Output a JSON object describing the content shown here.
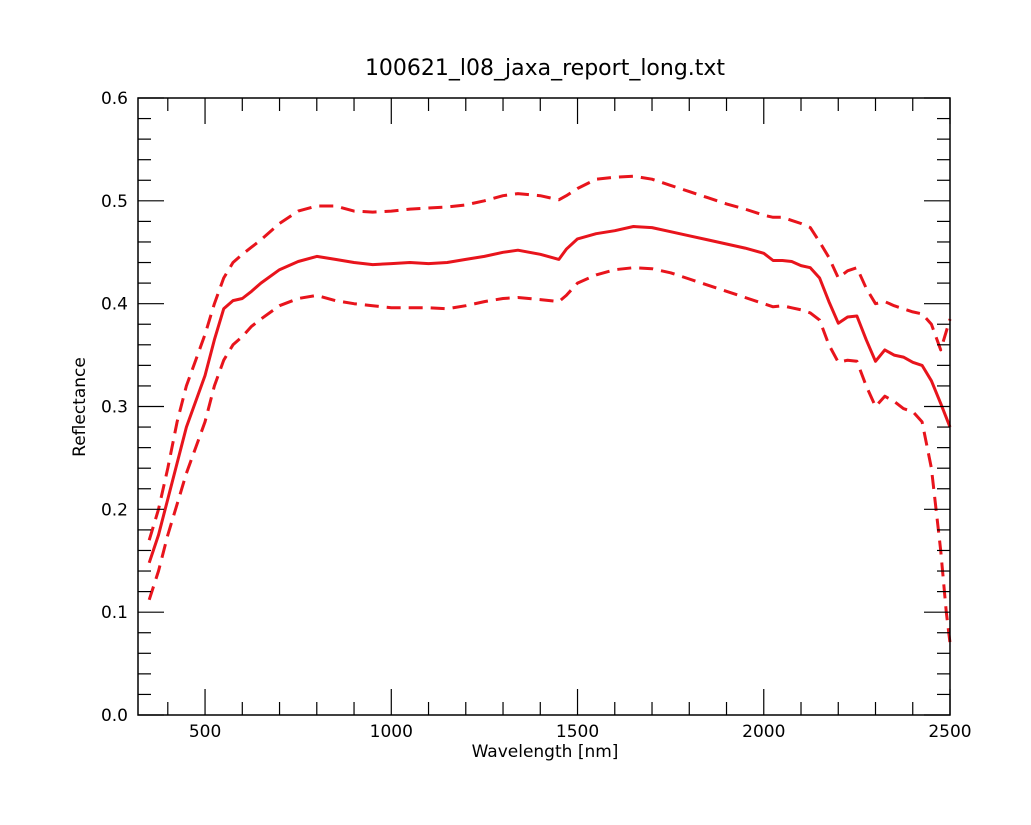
{
  "chart_data": {
    "type": "line",
    "title": "100621_l08_jaxa_report_long.txt",
    "xlabel": "Wavelength [nm]",
    "ylabel": "Reflectance",
    "xlim": [
      320,
      2500
    ],
    "ylim": [
      0.0,
      0.6
    ],
    "x_ticks": [
      "500",
      "1000",
      "1500",
      "2000",
      "2500"
    ],
    "x_tick_values": [
      500,
      1000,
      1500,
      2000,
      2500
    ],
    "y_ticks": [
      "0.0",
      "0.1",
      "0.2",
      "0.3",
      "0.4",
      "0.5",
      "0.6"
    ],
    "y_tick_values": [
      0.0,
      0.1,
      0.2,
      0.3,
      0.4,
      0.5,
      0.6
    ],
    "x_minor_step": 100,
    "y_minor_step": 0.02,
    "grid": false,
    "color": "#e8141c",
    "series": [
      {
        "style": "solid",
        "x": [
          350,
          375,
          400,
          425,
          450,
          475,
          500,
          525,
          550,
          575,
          600,
          625,
          650,
          700,
          750,
          800,
          850,
          900,
          950,
          1000,
          1050,
          1100,
          1150,
          1200,
          1250,
          1300,
          1340,
          1400,
          1450,
          1470,
          1500,
          1550,
          1600,
          1650,
          1700,
          1750,
          1800,
          1850,
          1900,
          1950,
          2000,
          2025,
          2050,
          2075,
          2100,
          2125,
          2150,
          2175,
          2200,
          2225,
          2250,
          2275,
          2300,
          2325,
          2350,
          2375,
          2400,
          2425,
          2450,
          2475,
          2500
        ],
        "values": [
          0.148,
          0.175,
          0.21,
          0.245,
          0.28,
          0.305,
          0.33,
          0.365,
          0.395,
          0.403,
          0.405,
          0.412,
          0.42,
          0.433,
          0.441,
          0.446,
          0.443,
          0.44,
          0.438,
          0.439,
          0.44,
          0.439,
          0.44,
          0.443,
          0.446,
          0.45,
          0.452,
          0.448,
          0.443,
          0.453,
          0.463,
          0.468,
          0.471,
          0.475,
          0.474,
          0.47,
          0.466,
          0.462,
          0.458,
          0.454,
          0.449,
          0.442,
          0.442,
          0.441,
          0.437,
          0.435,
          0.425,
          0.402,
          0.381,
          0.387,
          0.388,
          0.365,
          0.344,
          0.355,
          0.35,
          0.348,
          0.343,
          0.34,
          0.325,
          0.303,
          0.28
        ]
      },
      {
        "style": "dashed",
        "x": [
          350,
          375,
          400,
          425,
          450,
          475,
          500,
          525,
          550,
          575,
          600,
          625,
          650,
          700,
          750,
          800,
          850,
          900,
          950,
          1000,
          1050,
          1100,
          1150,
          1200,
          1250,
          1300,
          1340,
          1400,
          1450,
          1470,
          1500,
          1550,
          1600,
          1650,
          1700,
          1750,
          1800,
          1850,
          1900,
          1950,
          2000,
          2025,
          2050,
          2075,
          2100,
          2125,
          2150,
          2175,
          2200,
          2225,
          2250,
          2275,
          2300,
          2325,
          2350,
          2375,
          2400,
          2425,
          2450,
          2475,
          2500
        ],
        "values": [
          0.17,
          0.2,
          0.24,
          0.285,
          0.32,
          0.345,
          0.37,
          0.4,
          0.425,
          0.44,
          0.448,
          0.455,
          0.462,
          0.478,
          0.49,
          0.495,
          0.495,
          0.49,
          0.489,
          0.49,
          0.492,
          0.493,
          0.494,
          0.496,
          0.5,
          0.505,
          0.507,
          0.505,
          0.501,
          0.505,
          0.512,
          0.521,
          0.523,
          0.524,
          0.521,
          0.515,
          0.509,
          0.503,
          0.497,
          0.492,
          0.486,
          0.484,
          0.484,
          0.481,
          0.478,
          0.474,
          0.46,
          0.445,
          0.425,
          0.432,
          0.435,
          0.415,
          0.4,
          0.402,
          0.398,
          0.395,
          0.392,
          0.39,
          0.38,
          0.355,
          0.385
        ]
      },
      {
        "style": "dashed",
        "x": [
          350,
          375,
          400,
          425,
          450,
          475,
          500,
          525,
          550,
          575,
          600,
          625,
          650,
          700,
          750,
          800,
          850,
          900,
          950,
          1000,
          1050,
          1100,
          1150,
          1200,
          1250,
          1300,
          1340,
          1400,
          1450,
          1470,
          1500,
          1550,
          1600,
          1650,
          1700,
          1750,
          1800,
          1850,
          1900,
          1950,
          2000,
          2025,
          2050,
          2075,
          2100,
          2125,
          2150,
          2175,
          2200,
          2225,
          2250,
          2275,
          2300,
          2325,
          2350,
          2375,
          2400,
          2425,
          2450,
          2475,
          2490,
          2500
        ],
        "values": [
          0.112,
          0.14,
          0.175,
          0.205,
          0.235,
          0.26,
          0.285,
          0.32,
          0.345,
          0.36,
          0.368,
          0.378,
          0.385,
          0.398,
          0.405,
          0.408,
          0.403,
          0.4,
          0.398,
          0.396,
          0.396,
          0.396,
          0.395,
          0.398,
          0.402,
          0.405,
          0.406,
          0.404,
          0.402,
          0.408,
          0.42,
          0.428,
          0.433,
          0.435,
          0.434,
          0.43,
          0.424,
          0.418,
          0.412,
          0.406,
          0.4,
          0.397,
          0.398,
          0.396,
          0.394,
          0.391,
          0.384,
          0.36,
          0.343,
          0.345,
          0.344,
          0.32,
          0.3,
          0.31,
          0.305,
          0.298,
          0.295,
          0.285,
          0.24,
          0.16,
          0.1,
          0.07
        ]
      }
    ]
  }
}
